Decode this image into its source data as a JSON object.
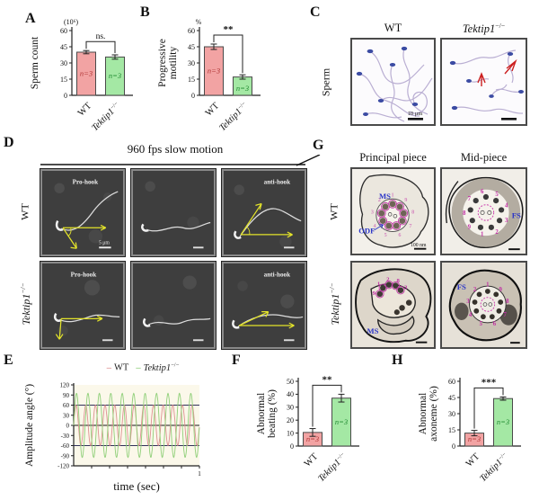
{
  "panel_letters": {
    "A": "A",
    "B": "B",
    "C": "C",
    "D": "D",
    "E": "E",
    "F": "F",
    "G": "G",
    "H": "H"
  },
  "names": {
    "wt": "WT",
    "ko_gene": "Tektip1",
    "ko_sup": "−/−"
  },
  "panelC": {
    "row_label": "Sperm",
    "scale_label": "10 μm"
  },
  "panelD": {
    "header": "960 fps slow motion",
    "tags": {
      "pro": "Pro-hook",
      "anti": "anti-hook"
    },
    "scale_label": "5 μm"
  },
  "panelG": {
    "col_headers": [
      "Principal piece",
      "Mid-piece"
    ],
    "labels": {
      "ms": "MS",
      "odf": "ODF",
      "fs": "FS"
    },
    "scale_label": "100 nm",
    "rings": {
      "wt_principal": [
        "1",
        "2",
        "3",
        "4",
        "5",
        "6",
        "7",
        "8",
        "9"
      ],
      "wt_mid": [
        "1",
        "2",
        "3",
        "4",
        "5",
        "6",
        "7",
        "8",
        "9"
      ],
      "ko_principal": [
        "9",
        "1",
        "2",
        "8",
        "3"
      ],
      "ko_mid": [
        "1",
        "2",
        "3",
        "4",
        "5",
        "6",
        "7",
        "8",
        "9"
      ]
    }
  },
  "chart_data": [
    {
      "id": "A",
      "type": "bar",
      "ylabel_lines": [
        "Sperm count"
      ],
      "unit": "(10⁶)",
      "categories": [
        {
          "text": "WT"
        },
        {
          "gene": "Tektip1",
          "sup": "−/−"
        }
      ],
      "values": [
        40,
        35.5
      ],
      "errors": [
        1.5,
        2
      ],
      "ylim": [
        0,
        60
      ],
      "yticks": [
        0,
        15,
        30,
        45,
        60
      ],
      "sig": "ns.",
      "n_labels": [
        "n=3",
        "n=3"
      ],
      "bar_colors": [
        "#f2a3a3",
        "#a4e8a4"
      ],
      "n_colors": [
        "#b03434",
        "#1f8a30"
      ]
    },
    {
      "id": "B",
      "type": "bar",
      "ylabel_lines": [
        "Progressive",
        "motility"
      ],
      "unit": "%",
      "categories": [
        {
          "text": "WT"
        },
        {
          "gene": "Tektip1",
          "sup": "−/−"
        }
      ],
      "values": [
        45,
        17
      ],
      "errors": [
        2.5,
        2
      ],
      "ylim": [
        0,
        60
      ],
      "yticks": [
        0,
        15,
        30,
        45,
        60
      ],
      "sig": "**",
      "n_labels": [
        "n=3",
        "n=3"
      ],
      "bar_colors": [
        "#f2a3a3",
        "#a4e8a4"
      ],
      "n_colors": [
        "#b03434",
        "#1f8a30"
      ]
    },
    {
      "id": "F",
      "type": "bar",
      "ylabel_lines": [
        "Abnormal",
        "beating (%)"
      ],
      "unit": "",
      "categories": [
        {
          "text": "WT"
        },
        {
          "gene": "Tektip1",
          "sup": "−/−"
        }
      ],
      "values": [
        10.5,
        37
      ],
      "errors": [
        3,
        3
      ],
      "ylim": [
        0,
        50
      ],
      "yticks": [
        0,
        10,
        20,
        30,
        40,
        50
      ],
      "sig": "**",
      "n_labels": [
        "n=3",
        "n=3"
      ],
      "bar_colors": [
        "#f2a3a3",
        "#a4e8a4"
      ],
      "n_colors": [
        "#b03434",
        "#1f8a30"
      ]
    },
    {
      "id": "H",
      "type": "bar",
      "ylabel_lines": [
        "Abnormal",
        "axoneme (%)"
      ],
      "unit": "",
      "categories": [
        {
          "text": "WT"
        },
        {
          "gene": "Tektip1",
          "sup": "−/−"
        }
      ],
      "values": [
        12,
        44
      ],
      "errors": [
        2.5,
        1.5
      ],
      "ylim": [
        0,
        60
      ],
      "yticks": [
        0,
        15,
        30,
        45,
        60
      ],
      "sig": "***",
      "n_labels": [
        "n=3",
        "n=3"
      ],
      "bar_colors": [
        "#f2a3a3",
        "#a4e8a4"
      ],
      "n_colors": [
        "#b03434",
        "#1f8a30"
      ]
    },
    {
      "id": "E",
      "type": "line",
      "xlabel": "time (sec)",
      "ylabel": "Amplitude angle (°)",
      "xlim": [
        0,
        1
      ],
      "ylim": [
        -120,
        120
      ],
      "yticks": [
        120,
        90,
        60,
        30,
        0,
        -30,
        -60,
        -90,
        -120
      ],
      "x_end_label": "1",
      "ref_lines": [
        60,
        0,
        -60
      ],
      "series": [
        {
          "name": {
            "text": "WT"
          },
          "color": "#dd9191",
          "amplitude": 60,
          "frequency": 13
        },
        {
          "name": {
            "gene": "Tektip1",
            "sup": "−/−"
          },
          "color": "#8fcf78",
          "amplitude": 95,
          "frequency": 11
        }
      ]
    }
  ]
}
